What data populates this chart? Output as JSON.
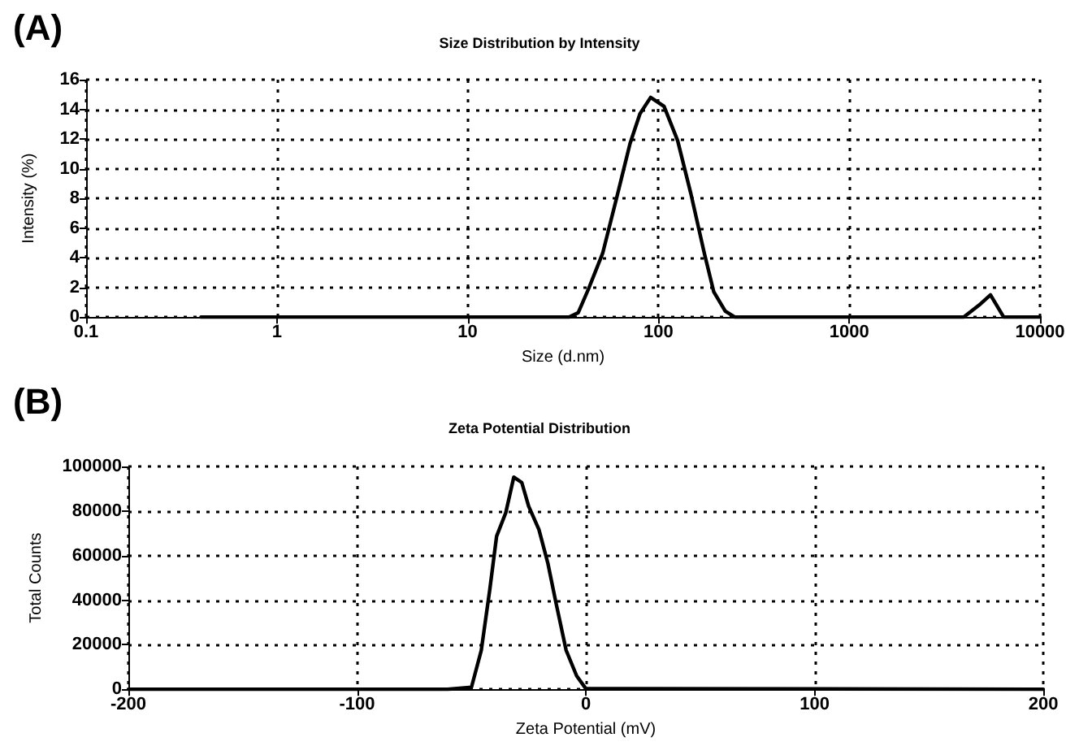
{
  "chart_data": [
    {
      "type": "line",
      "title": "Size Distribution by Intensity",
      "xlabel": "Size (d.nm)",
      "ylabel": "Intensity (%)",
      "annotations": [
        "(A)"
      ],
      "log": "x",
      "color": "#000000",
      "x": [
        0.4,
        34,
        38,
        43,
        51,
        60,
        71,
        80,
        91,
        107,
        126,
        148,
        174,
        195,
        224,
        251,
        3980,
        4790,
        5500,
        6450,
        10000
      ],
      "values": [
        0,
        0,
        0.3,
        1.9,
        4.3,
        7.9,
        11.7,
        13.7,
        14.8,
        14.2,
        11.9,
        8.3,
        4.3,
        1.7,
        0.4,
        0,
        0,
        0.8,
        1.5,
        0,
        0
      ],
      "xlim": [
        0.1,
        10000
      ],
      "xticks": [
        0.1,
        1,
        10,
        100,
        1000,
        10000
      ],
      "ylim": [
        0,
        16
      ],
      "yticks": [
        0,
        2,
        4,
        6,
        8,
        10,
        12,
        14,
        16
      ],
      "grid": true,
      "marker": "none",
      "line_style": "solid"
    },
    {
      "type": "line",
      "title": "Zeta Potential Distribution",
      "xlabel": "Zeta Potential (mV)",
      "ylabel": "Total Counts",
      "annotations": [
        "(B)"
      ],
      "color": "#000000",
      "x": [
        -200,
        -60.5,
        -50,
        -45.7,
        -42,
        -39,
        -35,
        -31.5,
        -28,
        -25,
        -20.5,
        -16.6,
        -13,
        -8.6,
        -4,
        0,
        200
      ],
      "values": [
        0,
        0,
        900,
        17500,
        44600,
        68700,
        79200,
        95200,
        92800,
        82200,
        71700,
        56600,
        38600,
        17500,
        6000,
        300,
        0
      ],
      "xlim": [
        -200,
        200
      ],
      "xticks": [
        -200,
        -100,
        0,
        100,
        200
      ],
      "ylim": [
        0,
        100000
      ],
      "yticks": [
        0,
        20000,
        40000,
        60000,
        80000,
        100000
      ],
      "grid": true,
      "marker": "none",
      "line_style": "solid"
    }
  ]
}
